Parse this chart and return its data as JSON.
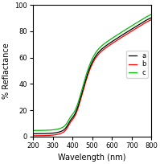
{
  "title": "",
  "xlabel": "Wavelength (nm)",
  "ylabel": "% Reflactance",
  "xlim": [
    200,
    800
  ],
  "ylim": [
    0,
    100
  ],
  "xticks": [
    200,
    300,
    400,
    500,
    600,
    700,
    800
  ],
  "yticks": [
    0,
    20,
    40,
    60,
    80,
    100
  ],
  "series": [
    {
      "label": "a",
      "color": "#000000",
      "lw": 0.9
    },
    {
      "label": "b",
      "color": "#ff0000",
      "lw": 0.9
    },
    {
      "label": "c",
      "color": "#00bb00",
      "lw": 0.9
    }
  ],
  "legend_loc": "center right",
  "legend_fontsize": 6,
  "tick_fontsize": 6,
  "label_fontsize": 7,
  "figsize": [
    1.99,
    2.04
  ],
  "dpi": 100
}
